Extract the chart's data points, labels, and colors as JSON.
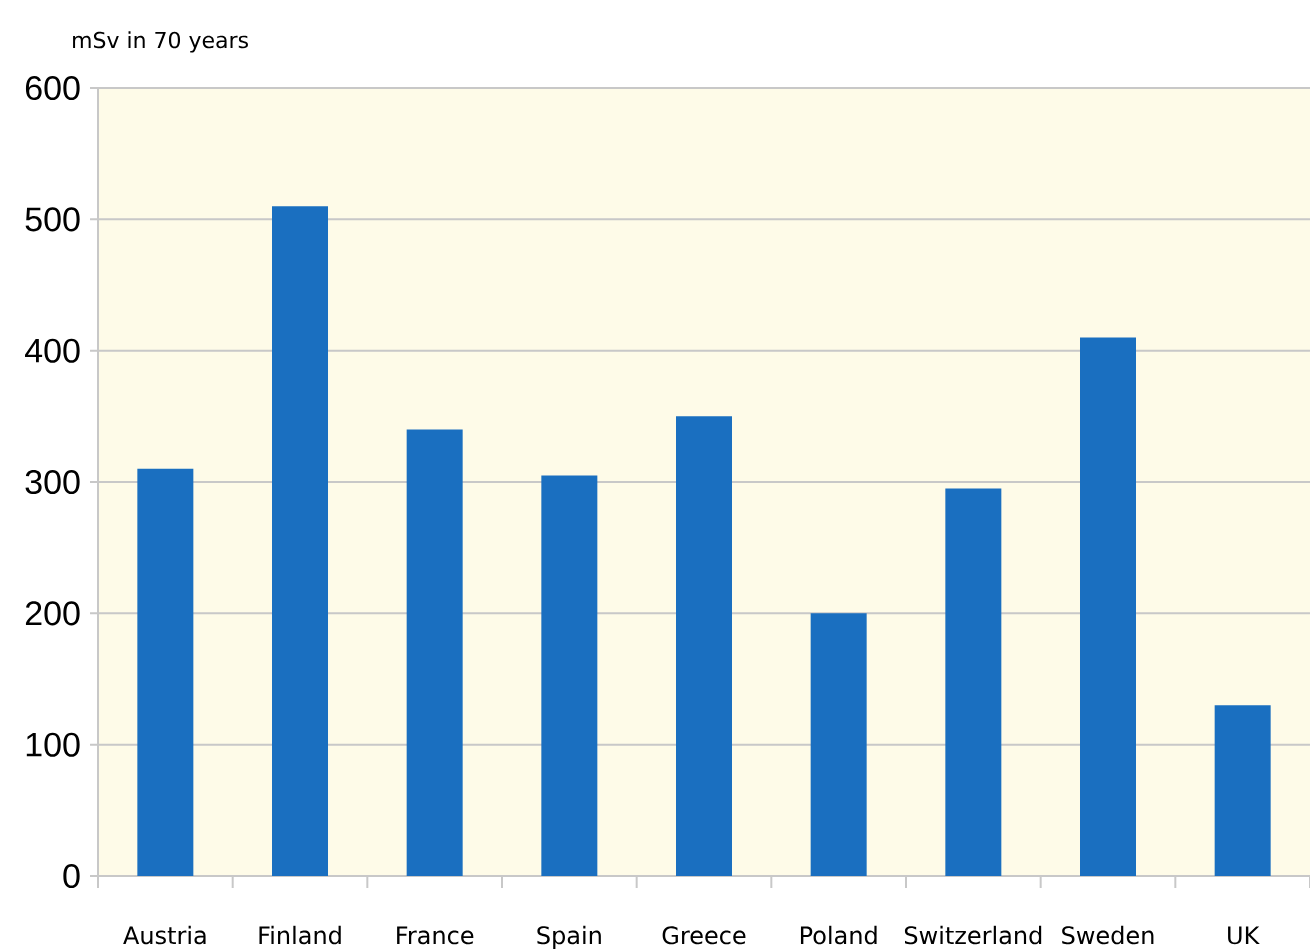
{
  "chart_data": {
    "type": "bar",
    "ylabel": "mSv in 70 years",
    "categories": [
      "Austria",
      "Finland",
      "France",
      "Spain",
      "Greece",
      "Poland",
      "Switzerland",
      "Sweden",
      "UK"
    ],
    "values": [
      310,
      510,
      340,
      305,
      350,
      200,
      295,
      410,
      130
    ],
    "color": "#1a6fc0",
    "ylim": [
      0,
      600
    ],
    "yticks": [
      0,
      100,
      200,
      300,
      400,
      500,
      600
    ],
    "grid": "y"
  }
}
